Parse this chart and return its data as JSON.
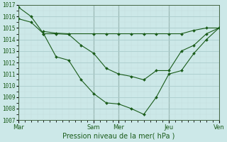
{
  "xlabel": "Pression niveau de la mer( hPa )",
  "bg_color": "#cce8e8",
  "line_color": "#1a5c1a",
  "grid_color": "#aacccc",
  "grid_minor_color": "#c5dede",
  "ylim": [
    1007,
    1017
  ],
  "yticks": [
    1007,
    1008,
    1009,
    1010,
    1011,
    1012,
    1013,
    1014,
    1015,
    1016,
    1017
  ],
  "day_labels": [
    "Mar",
    "Sam",
    "Mer",
    "Jeu",
    "Ven"
  ],
  "day_positions": [
    0,
    12,
    16,
    24,
    32
  ],
  "xlim": [
    0,
    32
  ],
  "line1_x": [
    0,
    2,
    4,
    6,
    8,
    10,
    12,
    14,
    16,
    18,
    20,
    22,
    24,
    26,
    28,
    30,
    32
  ],
  "line1_y": [
    1016.8,
    1016.0,
    1014.5,
    1012.5,
    1012.2,
    1010.5,
    1009.3,
    1008.5,
    1008.4,
    1008.0,
    1007.5,
    1009.0,
    1011.0,
    1011.3,
    1012.8,
    1014.0,
    1015.0
  ],
  "line2_x": [
    0,
    2,
    4,
    6,
    8,
    10,
    12,
    14,
    16,
    18,
    20,
    22,
    24,
    26,
    28,
    30,
    32
  ],
  "line2_y": [
    1015.8,
    1015.5,
    1014.5,
    1014.5,
    1014.45,
    1013.5,
    1012.8,
    1011.5,
    1011.0,
    1010.8,
    1010.5,
    1011.3,
    1011.3,
    1013.0,
    1013.5,
    1014.5,
    1015.0
  ],
  "line3_x": [
    4,
    6,
    8,
    12,
    14,
    16,
    18,
    20,
    22,
    24,
    26,
    28,
    30,
    32
  ],
  "line3_y": [
    1014.7,
    1014.55,
    1014.5,
    1014.5,
    1014.5,
    1014.5,
    1014.5,
    1014.5,
    1014.5,
    1014.5,
    1014.5,
    1014.8,
    1015.0,
    1015.0
  ],
  "marker": "D",
  "markersize": 2.0,
  "linewidth": 0.8
}
